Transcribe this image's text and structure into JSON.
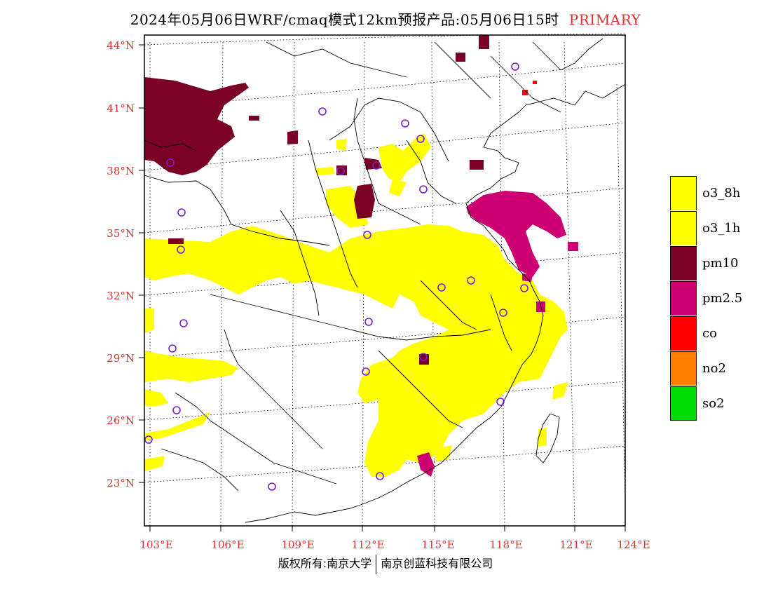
{
  "title": {
    "main": "2024年05月06日WRF/cmaq模式12km预报产品:05月06日15时",
    "badge": "PRIMARY"
  },
  "axes": {
    "lat_labels": [
      "44°N",
      "41°N",
      "38°N",
      "35°N",
      "32°N",
      "29°N",
      "26°N",
      "23°N"
    ],
    "lon_labels": [
      "103°E",
      "106°E",
      "109°E",
      "112°E",
      "115°E",
      "118°E",
      "121°E",
      "124°E"
    ]
  },
  "legend": {
    "items": [
      {
        "label": "o3_8h",
        "color": "#ffff00"
      },
      {
        "label": "o3_1h",
        "color": "#ffff00"
      },
      {
        "label": "pm10",
        "color": "#7a0026"
      },
      {
        "label": "pm2.5",
        "color": "#cc0070"
      },
      {
        "label": "co",
        "color": "#ff0000"
      },
      {
        "label": "no2",
        "color": "#ff7f00"
      },
      {
        "label": "so2",
        "color": "#00dd00"
      }
    ]
  },
  "footer": {
    "left": "版权所有:南京大学",
    "right": "南京创蓝科技有限公司"
  }
}
